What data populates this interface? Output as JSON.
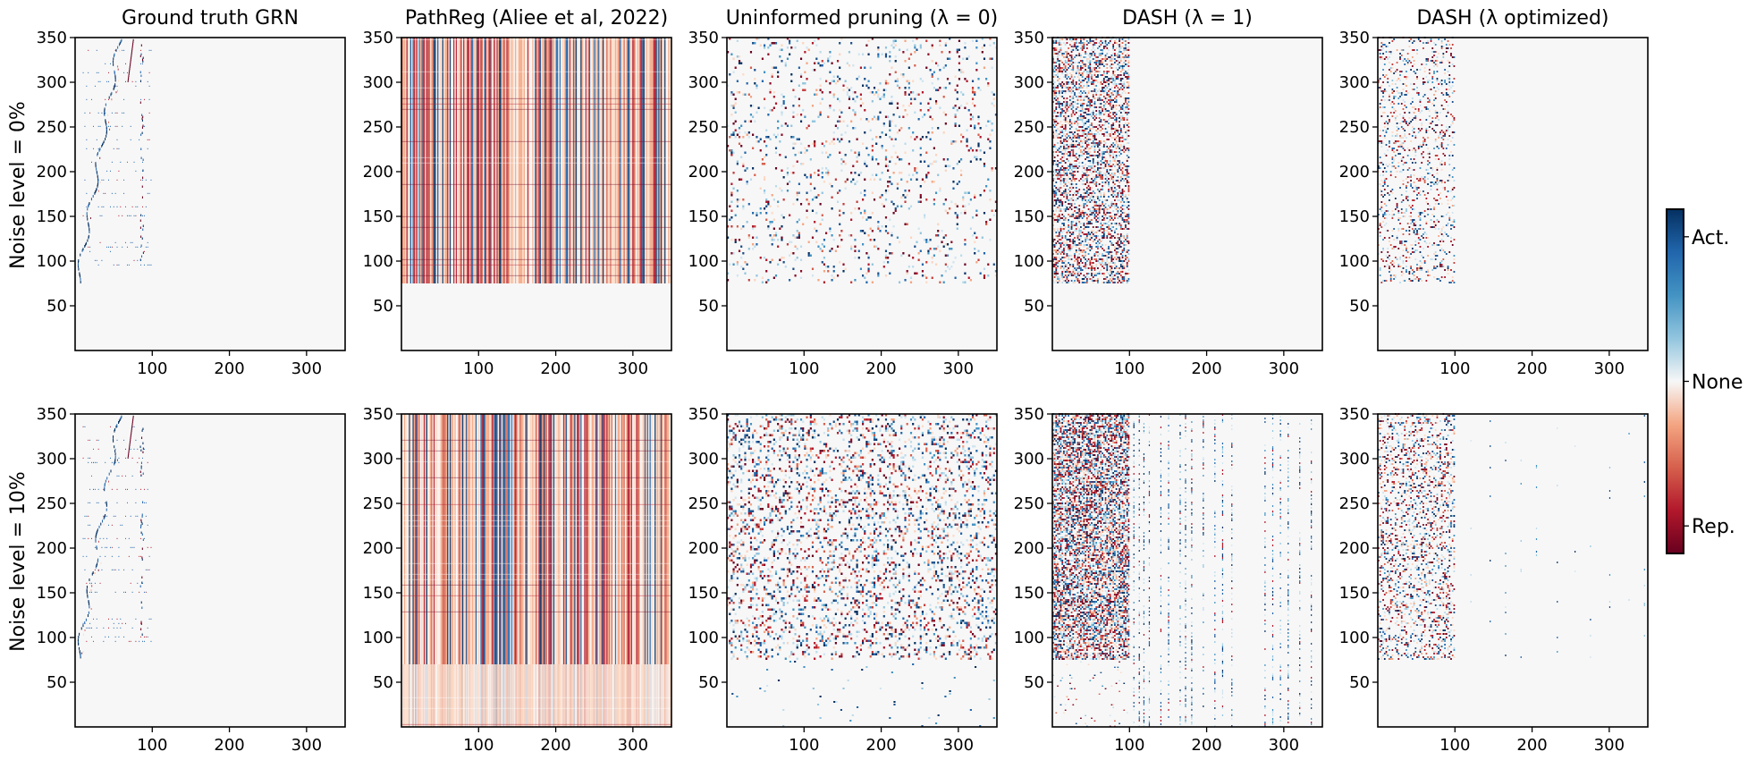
{
  "chart_data": {
    "type": "heatmap",
    "panel_titles": [
      "Ground truth GRN",
      "PathReg (Aliee et al, 2022)",
      "Uninformed pruning (λ = 0)",
      "DASH (λ = 1)",
      "DASH (λ optimized)"
    ],
    "row_labels": [
      "Noise level = 0%",
      "Noise level = 10%"
    ],
    "xlim": [
      0,
      350
    ],
    "ylim": [
      0,
      350
    ],
    "x_ticks": [
      "100",
      "200",
      "300"
    ],
    "y_ticks": [
      "50",
      "100",
      "150",
      "200",
      "250",
      "300",
      "350"
    ],
    "colorbar": {
      "colormap": "RdBu",
      "low_color": "#67001f",
      "mid_color": "#f7f7f7",
      "high_color": "#053061",
      "tick_labels": [
        "Rep.",
        "None",
        "Act."
      ]
    },
    "panels": [
      {
        "row": "Noise level = 0%",
        "title": "Ground truth GRN",
        "active_region": {
          "x": [
            0,
            100
          ],
          "y": [
            75,
            350
          ]
        },
        "density": "very sparse, diagonal band structure"
      },
      {
        "row": "Noise level = 0%",
        "title": "PathReg (Aliee et al, 2022)",
        "active_region": {
          "x": [
            0,
            350
          ],
          "y": [
            75,
            350
          ]
        },
        "density": "dense, predominantly repressive"
      },
      {
        "row": "Noise level = 0%",
        "title": "Uninformed pruning (λ = 0)",
        "active_region": {
          "x": [
            0,
            350
          ],
          "y": [
            75,
            350
          ]
        },
        "density": "moderate, mixed"
      },
      {
        "row": "Noise level = 0%",
        "title": "DASH (λ = 1)",
        "active_region": {
          "x": [
            0,
            100
          ],
          "y": [
            75,
            350
          ]
        },
        "density": "dense, mixed"
      },
      {
        "row": "Noise level = 0%",
        "title": "DASH (λ optimized)",
        "active_region": {
          "x": [
            0,
            100
          ],
          "y": [
            75,
            350
          ]
        },
        "density": "moderate, mixed"
      },
      {
        "row": "Noise level = 10%",
        "title": "Ground truth GRN",
        "active_region": {
          "x": [
            0,
            100
          ],
          "y": [
            75,
            350
          ]
        },
        "density": "very sparse, diagonal band structure"
      },
      {
        "row": "Noise level = 10%",
        "title": "PathReg (Aliee et al, 2022)",
        "active_region": {
          "x": [
            0,
            350
          ],
          "y": [
            0,
            350
          ]
        },
        "density": "dense, predominantly repressive"
      },
      {
        "row": "Noise level = 10%",
        "title": "Uninformed pruning (λ = 0)",
        "active_region": {
          "x": [
            0,
            350
          ],
          "y": [
            0,
            350
          ]
        },
        "density": "dense, mixed"
      },
      {
        "row": "Noise level = 10%",
        "title": "DASH (λ = 1)",
        "active_region": {
          "x": [
            0,
            350
          ],
          "y": [
            0,
            350
          ]
        },
        "density": "dense in x<100, sparse columns beyond"
      },
      {
        "row": "Noise level = 10%",
        "title": "DASH (λ optimized)",
        "active_region": {
          "x": [
            0,
            350
          ],
          "y": [
            75,
            350
          ]
        },
        "density": "moderate in x<100, very sparse beyond"
      }
    ]
  }
}
